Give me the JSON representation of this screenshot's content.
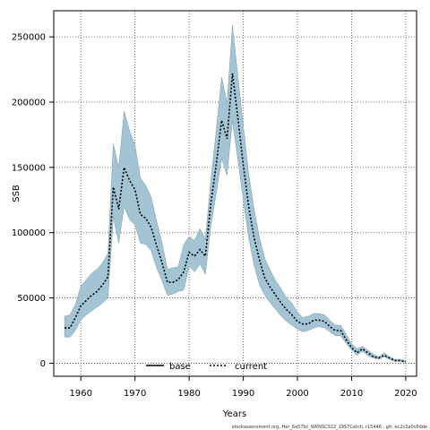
{
  "chart_data": {
    "type": "area",
    "xlabel": "Years",
    "ylabel": "SSB",
    "xlim": [
      1955,
      2022
    ],
    "ylim": [
      -10000,
      270000
    ],
    "xticks": [
      1960,
      1970,
      1980,
      1990,
      2000,
      2010,
      2020
    ],
    "yticks": [
      0,
      50000,
      100000,
      150000,
      200000,
      250000
    ],
    "grid": true,
    "legend_position": "bottom-center",
    "series": [
      {
        "name": "base",
        "style": "solid",
        "color": "#000000",
        "x": [],
        "y": []
      },
      {
        "name": "current",
        "style": "dotted",
        "color": "#000000",
        "x": [
          1957,
          1958,
          1959,
          1960,
          1961,
          1962,
          1963,
          1964,
          1965,
          1966,
          1967,
          1968,
          1969,
          1970,
          1971,
          1972,
          1973,
          1974,
          1975,
          1976,
          1977,
          1978,
          1979,
          1980,
          1981,
          1982,
          1983,
          1984,
          1985,
          1986,
          1987,
          1988,
          1989,
          1990,
          1991,
          1992,
          1993,
          1994,
          1995,
          1996,
          1997,
          1998,
          1999,
          2000,
          2001,
          2002,
          2003,
          2004,
          2005,
          2006,
          2007,
          2008,
          2009,
          2010,
          2011,
          2012,
          2013,
          2014,
          2015,
          2016,
          2017,
          2018,
          2019,
          2020
        ],
        "y": [
          27000,
          27000,
          35000,
          44000,
          48000,
          52000,
          55000,
          60000,
          66000,
          135000,
          118000,
          150000,
          140000,
          133000,
          114000,
          111000,
          104000,
          90000,
          77000,
          62000,
          62000,
          64000,
          70000,
          85000,
          82000,
          87000,
          82000,
          122000,
          152000,
          186000,
          172000,
          222000,
          188000,
          152000,
          120000,
          96000,
          79000,
          65000,
          58000,
          52000,
          46000,
          41000,
          37000,
          32000,
          30000,
          30000,
          33000,
          33000,
          32000,
          28000,
          25000,
          25000,
          18000,
          12000,
          8000,
          11000,
          8000,
          5000,
          4000,
          6000,
          4000,
          2000,
          2000,
          1000
        ]
      }
    ],
    "confidence_band": {
      "color": "#a3c4d4",
      "x": [
        1957,
        1958,
        1959,
        1960,
        1961,
        1962,
        1963,
        1964,
        1965,
        1966,
        1967,
        1968,
        1969,
        1970,
        1971,
        1972,
        1973,
        1974,
        1975,
        1976,
        1977,
        1978,
        1979,
        1980,
        1981,
        1982,
        1983,
        1984,
        1985,
        1986,
        1987,
        1988,
        1989,
        1990,
        1991,
        1992,
        1993,
        1994,
        1995,
        1996,
        1997,
        1998,
        1999,
        2000,
        2001,
        2002,
        2003,
        2004,
        2005,
        2006,
        2007,
        2008,
        2009,
        2010,
        2011,
        2012,
        2013,
        2014,
        2015,
        2016,
        2017,
        2018,
        2019,
        2020
      ],
      "lower": [
        20000,
        20000,
        25000,
        33000,
        37000,
        40000,
        43000,
        46000,
        50000,
        112000,
        92000,
        120000,
        110000,
        106000,
        92000,
        91000,
        86000,
        73000,
        63000,
        52000,
        53000,
        55000,
        56000,
        74000,
        70000,
        76000,
        68000,
        105000,
        130000,
        157000,
        144000,
        186000,
        156000,
        125000,
        96000,
        75000,
        60000,
        52000,
        46000,
        41000,
        36000,
        32000,
        29000,
        26000,
        24000,
        25000,
        27000,
        28000,
        27000,
        24000,
        21000,
        21000,
        15000,
        10000,
        6000,
        9000,
        6000,
        4000,
        3000,
        5000,
        3000,
        1500,
        1500,
        500
      ],
      "upper": [
        36000,
        37000,
        45000,
        59000,
        64000,
        69000,
        72000,
        77000,
        84000,
        168000,
        150000,
        193000,
        178000,
        167000,
        142000,
        136000,
        127000,
        109000,
        92000,
        72000,
        73000,
        74000,
        91000,
        97000,
        94000,
        103000,
        95000,
        140000,
        178000,
        219000,
        199000,
        259000,
        220000,
        182000,
        145000,
        118000,
        96000,
        80000,
        71000,
        63000,
        57000,
        50000,
        46000,
        39000,
        35000,
        36000,
        38000,
        38000,
        37000,
        33000,
        29000,
        29000,
        22000,
        15000,
        11000,
        13000,
        10000,
        7000,
        5000,
        8000,
        5000,
        3000,
        3000,
        2000
      ]
    }
  },
  "footer_text": "stockassessment.org, Her_6a57bc_WKNSCS22_1957Catch, r15446 , git: ec2c2a0c6dde"
}
